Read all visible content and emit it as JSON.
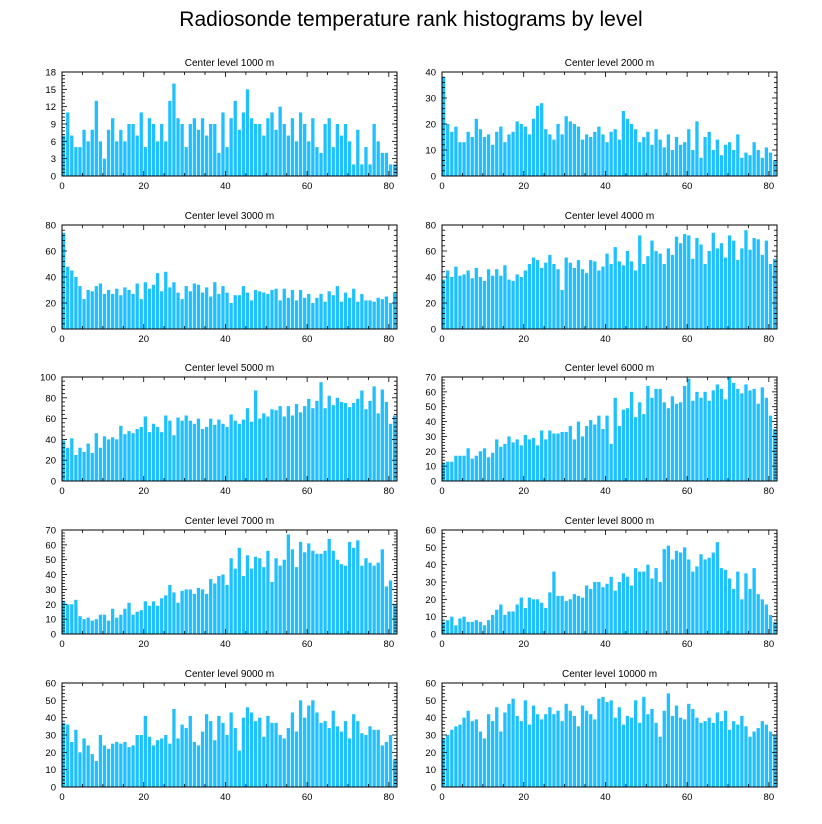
{
  "title": "Radiosonde temperature rank histograms by level",
  "bar_color": "#1ec0ff",
  "chart_data": [
    {
      "type": "bar",
      "title": "Center level 1000 m",
      "xlabel": "",
      "ylabel": "",
      "xlim": [
        0,
        82
      ],
      "ylim": [
        0,
        18
      ],
      "yticks": [
        0,
        3,
        6,
        9,
        12,
        15,
        18
      ],
      "xticks": [
        0,
        20,
        40,
        60,
        80
      ],
      "values": [
        7,
        11,
        7,
        5,
        5,
        8,
        6,
        8,
        13,
        6,
        3,
        8,
        10,
        6,
        8,
        6,
        9,
        9,
        7,
        11,
        5,
        10,
        9,
        6,
        9,
        6,
        13,
        16,
        10,
        9,
        5,
        9,
        10,
        8,
        10,
        7,
        9,
        9,
        4,
        11,
        5,
        10,
        13,
        8,
        11,
        15,
        10,
        9,
        9,
        7,
        10,
        11,
        8,
        12,
        9,
        7,
        10,
        6,
        11,
        9,
        6,
        10,
        5,
        4,
        9,
        10,
        5,
        9,
        7,
        9,
        6,
        2,
        8,
        2,
        5,
        2,
        9,
        6,
        4,
        4,
        2,
        2
      ]
    },
    {
      "type": "bar",
      "title": "Center level 2000 m",
      "xlabel": "",
      "ylabel": "",
      "xlim": [
        0,
        82
      ],
      "ylim": [
        0,
        40
      ],
      "yticks": [
        0,
        10,
        20,
        30,
        40
      ],
      "xticks": [
        0,
        20,
        40,
        60,
        80
      ],
      "values": [
        38,
        20,
        17,
        19,
        13,
        13,
        17,
        15,
        22,
        18,
        15,
        16,
        12,
        17,
        19,
        13,
        16,
        17,
        21,
        20,
        19,
        16,
        22,
        27,
        28,
        18,
        16,
        14,
        20,
        16,
        23,
        21,
        20,
        19,
        14,
        16,
        15,
        17,
        19,
        16,
        13,
        17,
        18,
        14,
        25,
        22,
        20,
        18,
        13,
        15,
        17,
        12,
        18,
        14,
        11,
        16,
        10,
        15,
        12,
        13,
        18,
        10,
        21,
        7,
        15,
        17,
        10,
        14,
        8,
        12,
        13,
        10,
        16,
        7,
        9,
        8,
        13,
        10,
        7,
        11,
        9,
        6
      ]
    },
    {
      "type": "bar",
      "title": "Center level 3000 m",
      "xlabel": "",
      "ylabel": "",
      "xlim": [
        0,
        82
      ],
      "ylim": [
        0,
        80
      ],
      "yticks": [
        0,
        20,
        40,
        60,
        80
      ],
      "xticks": [
        0,
        20,
        40,
        60,
        80
      ],
      "values": [
        74,
        48,
        45,
        40,
        33,
        23,
        30,
        29,
        33,
        35,
        27,
        30,
        27,
        31,
        26,
        32,
        30,
        27,
        35,
        23,
        36,
        31,
        34,
        43,
        29,
        44,
        32,
        36,
        28,
        23,
        33,
        29,
        35,
        34,
        28,
        32,
        25,
        36,
        27,
        33,
        28,
        20,
        26,
        26,
        33,
        28,
        22,
        30,
        29,
        28,
        27,
        30,
        31,
        22,
        31,
        24,
        30,
        22,
        30,
        24,
        27,
        20,
        24,
        27,
        21,
        29,
        26,
        33,
        21,
        28,
        24,
        31,
        21,
        27,
        22,
        22,
        21,
        24,
        23,
        25,
        20,
        28
      ]
    },
    {
      "type": "bar",
      "title": "Center level 4000 m",
      "xlabel": "",
      "ylabel": "",
      "xlim": [
        0,
        82
      ],
      "ylim": [
        0,
        80
      ],
      "yticks": [
        0,
        20,
        40,
        60,
        80
      ],
      "xticks": [
        0,
        20,
        40,
        60,
        80
      ],
      "values": [
        38,
        45,
        40,
        48,
        41,
        42,
        45,
        39,
        47,
        40,
        37,
        46,
        41,
        46,
        41,
        49,
        38,
        37,
        42,
        40,
        45,
        50,
        55,
        53,
        47,
        51,
        57,
        50,
        46,
        30,
        55,
        51,
        47,
        53,
        46,
        43,
        53,
        52,
        45,
        48,
        58,
        50,
        63,
        52,
        49,
        60,
        52,
        45,
        72,
        50,
        56,
        68,
        60,
        58,
        50,
        62,
        57,
        71,
        66,
        73,
        72,
        54,
        70,
        65,
        50,
        60,
        74,
        62,
        66,
        55,
        72,
        68,
        53,
        62,
        76,
        61,
        70,
        69,
        57,
        68,
        50,
        54
      ]
    },
    {
      "type": "bar",
      "title": "Center level 5000 m",
      "xlabel": "",
      "ylabel": "",
      "xlim": [
        0,
        82
      ],
      "ylim": [
        0,
        100
      ],
      "yticks": [
        0,
        20,
        40,
        60,
        80,
        100
      ],
      "xticks": [
        0,
        20,
        40,
        60,
        80
      ],
      "values": [
        39,
        32,
        41,
        25,
        32,
        28,
        36,
        27,
        46,
        32,
        43,
        40,
        42,
        40,
        53,
        45,
        48,
        46,
        50,
        52,
        62,
        47,
        55,
        52,
        47,
        63,
        58,
        44,
        61,
        58,
        63,
        58,
        55,
        60,
        50,
        52,
        60,
        54,
        59,
        55,
        52,
        64,
        58,
        55,
        59,
        70,
        57,
        87,
        60,
        65,
        62,
        69,
        68,
        72,
        62,
        72,
        63,
        74,
        66,
        72,
        79,
        70,
        77,
        95,
        70,
        82,
        73,
        80,
        76,
        75,
        71,
        75,
        79,
        87,
        69,
        77,
        91,
        65,
        88,
        76,
        55,
        63
      ]
    },
    {
      "type": "bar",
      "title": "Center level 6000 m",
      "xlabel": "",
      "ylabel": "",
      "xlim": [
        0,
        82
      ],
      "ylim": [
        0,
        70
      ],
      "yticks": [
        0,
        10,
        20,
        30,
        40,
        50,
        60,
        70
      ],
      "xticks": [
        0,
        20,
        40,
        60,
        80
      ],
      "values": [
        12,
        13,
        13,
        17,
        17,
        17,
        22,
        15,
        17,
        20,
        22,
        16,
        19,
        28,
        23,
        25,
        30,
        26,
        28,
        24,
        31,
        28,
        29,
        24,
        34,
        28,
        34,
        32,
        32,
        33,
        33,
        37,
        28,
        40,
        30,
        37,
        41,
        38,
        44,
        35,
        44,
        25,
        56,
        37,
        48,
        49,
        60,
        43,
        53,
        45,
        64,
        56,
        62,
        62,
        53,
        49,
        57,
        52,
        53,
        64,
        69,
        54,
        60,
        56,
        60,
        54,
        61,
        65,
        62,
        55,
        70,
        66,
        62,
        59,
        65,
        61,
        62,
        52,
        63,
        56,
        44,
        35
      ]
    },
    {
      "type": "bar",
      "title": "Center level 7000 m",
      "xlabel": "",
      "ylabel": "",
      "xlim": [
        0,
        82
      ],
      "ylim": [
        0,
        70
      ],
      "yticks": [
        0,
        10,
        20,
        30,
        40,
        50,
        60,
        70
      ],
      "xticks": [
        0,
        20,
        40,
        60,
        80
      ],
      "values": [
        22,
        20,
        20,
        23,
        12,
        10,
        11,
        9,
        10,
        13,
        13,
        9,
        17,
        11,
        13,
        17,
        21,
        13,
        15,
        16,
        22,
        19,
        22,
        19,
        24,
        26,
        33,
        28,
        21,
        29,
        30,
        30,
        27,
        31,
        30,
        27,
        37,
        34,
        39,
        40,
        33,
        51,
        44,
        58,
        39,
        53,
        44,
        52,
        51,
        45,
        56,
        35,
        51,
        46,
        50,
        67,
        57,
        45,
        62,
        55,
        61,
        56,
        54,
        54,
        56,
        64,
        56,
        50,
        47,
        46,
        62,
        58,
        63,
        46,
        51,
        48,
        46,
        48,
        57,
        32,
        36,
        20
      ]
    },
    {
      "type": "bar",
      "title": "Center level 8000 m",
      "xlabel": "",
      "ylabel": "",
      "xlim": [
        0,
        82
      ],
      "ylim": [
        0,
        60
      ],
      "yticks": [
        0,
        10,
        20,
        30,
        40,
        50,
        60
      ],
      "xticks": [
        0,
        20,
        40,
        60,
        80
      ],
      "values": [
        7,
        8,
        10,
        5,
        9,
        10,
        7,
        7,
        8,
        7,
        5,
        8,
        11,
        14,
        17,
        11,
        13,
        13,
        17,
        21,
        15,
        21,
        20,
        20,
        18,
        15,
        24,
        36,
        22,
        22,
        19,
        20,
        23,
        22,
        21,
        28,
        26,
        30,
        30,
        27,
        29,
        33,
        25,
        30,
        35,
        33,
        28,
        38,
        36,
        36,
        40,
        32,
        38,
        30,
        49,
        51,
        43,
        48,
        47,
        50,
        43,
        36,
        39,
        46,
        43,
        44,
        47,
        53,
        38,
        37,
        32,
        26,
        36,
        20,
        35,
        26,
        38,
        23,
        20,
        17,
        11,
        7
      ]
    },
    {
      "type": "bar",
      "title": "Center level 9000 m",
      "xlabel": "",
      "ylabel": "",
      "xlim": [
        0,
        82
      ],
      "ylim": [
        0,
        60
      ],
      "yticks": [
        0,
        10,
        20,
        30,
        40,
        50,
        60
      ],
      "xticks": [
        0,
        20,
        40,
        60,
        80
      ],
      "values": [
        37,
        36,
        26,
        33,
        20,
        28,
        24,
        19,
        15,
        30,
        24,
        22,
        25,
        26,
        25,
        26,
        23,
        24,
        30,
        30,
        41,
        29,
        24,
        27,
        28,
        30,
        25,
        45,
        28,
        36,
        34,
        41,
        26,
        24,
        32,
        42,
        38,
        27,
        41,
        37,
        30,
        43,
        34,
        21,
        40,
        46,
        43,
        38,
        40,
        29,
        41,
        37,
        37,
        30,
        28,
        34,
        43,
        32,
        50,
        40,
        47,
        50,
        43,
        37,
        38,
        34,
        44,
        35,
        32,
        38,
        28,
        42,
        38,
        31,
        30,
        35,
        33,
        33,
        24,
        26,
        30,
        16
      ]
    },
    {
      "type": "bar",
      "title": "Center level 10000 m",
      "xlabel": "",
      "ylabel": "",
      "xlim": [
        0,
        82
      ],
      "ylim": [
        0,
        60
      ],
      "yticks": [
        0,
        10,
        20,
        30,
        40,
        50,
        60
      ],
      "xticks": [
        0,
        20,
        40,
        60,
        80
      ],
      "values": [
        28,
        30,
        33,
        35,
        36,
        40,
        44,
        38,
        39,
        32,
        28,
        42,
        38,
        46,
        32,
        43,
        48,
        51,
        41,
        38,
        50,
        36,
        47,
        42,
        39,
        42,
        46,
        42,
        44,
        38,
        48,
        44,
        41,
        35,
        47,
        44,
        42,
        39,
        51,
        52,
        49,
        50,
        40,
        46,
        36,
        41,
        40,
        50,
        37,
        52,
        42,
        45,
        37,
        29,
        44,
        54,
        41,
        47,
        40,
        39,
        48,
        45,
        40,
        37,
        38,
        40,
        37,
        43,
        38,
        44,
        33,
        38,
        36,
        41,
        35,
        29,
        32,
        34,
        38,
        36,
        32,
        30
      ]
    }
  ]
}
